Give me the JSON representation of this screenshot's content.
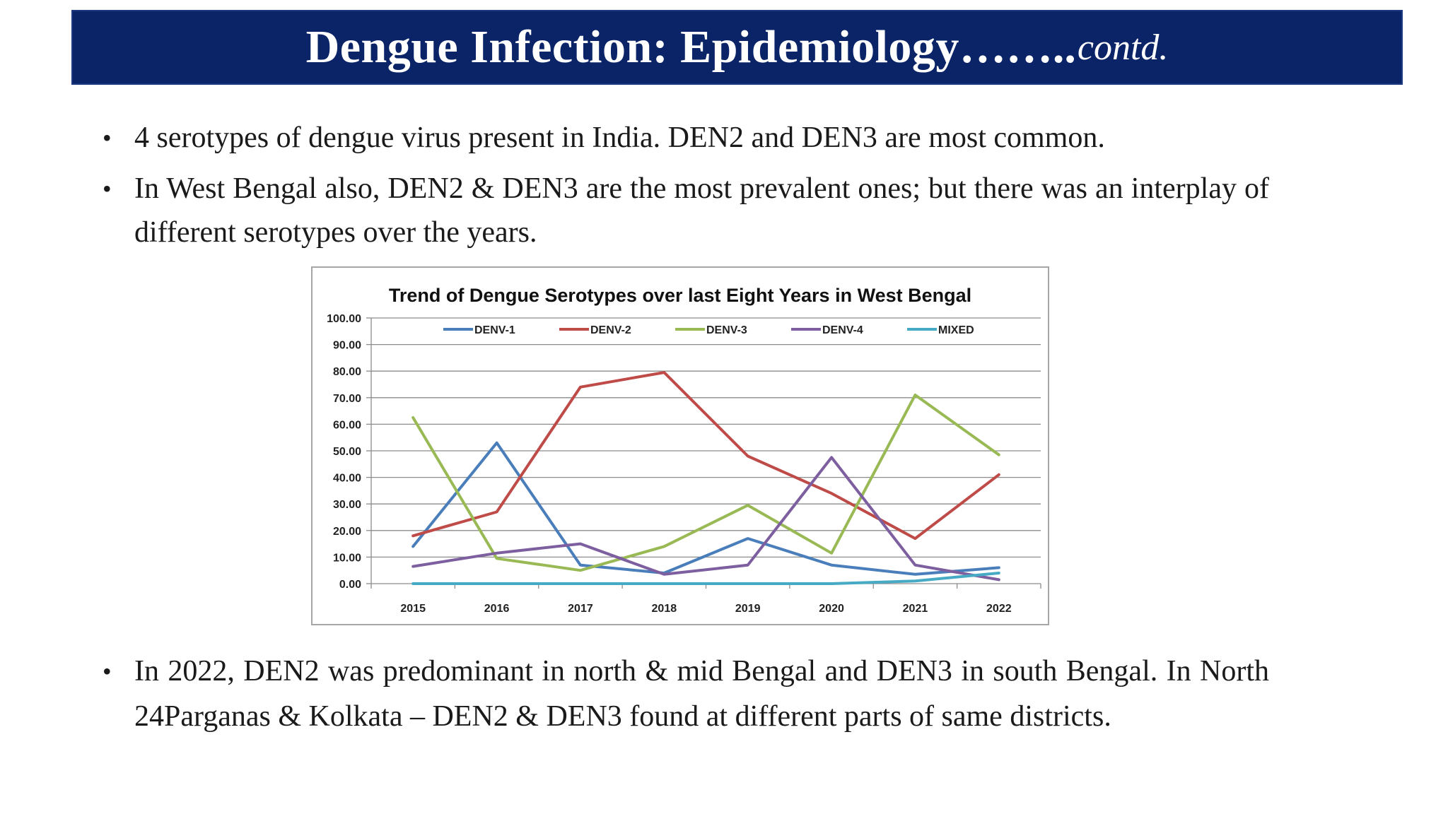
{
  "slide": {
    "title_main": "Dengue Infection: Epidemiology",
    "title_dots": "……..",
    "title_contd": "contd."
  },
  "bullets": {
    "b1": "4 serotypes of dengue virus present in India. DEN2 and DEN3 are most common.",
    "b2": "In West Bengal also, DEN2 & DEN3 are the most prevalent ones; but there was an interplay of different serotypes over the years.",
    "b3": "In 2022, DEN2 was predominant in north & mid Bengal and DEN3 in south Bengal. In North 24Parganas & Kolkata – DEN2 & DEN3 found at different parts of same districts.",
    "marker": "•"
  },
  "chart_data": {
    "type": "line",
    "title": "Trend of Dengue Serotypes over last Eight Years in West Bengal",
    "xlabel": "",
    "ylabel": "",
    "categories": [
      "2015",
      "2016",
      "2017",
      "2018",
      "2019",
      "2020",
      "2021",
      "2022"
    ],
    "ylim": [
      0,
      100
    ],
    "yticks": [
      "0.00",
      "10.00",
      "20.00",
      "30.00",
      "40.00",
      "50.00",
      "60.00",
      "70.00",
      "80.00",
      "90.00",
      "100.00"
    ],
    "grid": true,
    "legend_position": "top",
    "series": [
      {
        "name": "DENV-1",
        "color": "#4a7ebb",
        "values": [
          14,
          53,
          7,
          4,
          17,
          7,
          3.5,
          6
        ]
      },
      {
        "name": "DENV-2",
        "color": "#be4b48",
        "values": [
          18,
          27,
          74,
          79.5,
          48,
          34,
          17,
          41
        ]
      },
      {
        "name": "DENV-3",
        "color": "#98b954",
        "values": [
          62.5,
          9.5,
          5,
          14,
          29.5,
          11.5,
          71,
          48.5
        ]
      },
      {
        "name": "DENV-4",
        "color": "#7d5fa0",
        "values": [
          6.5,
          11.5,
          15,
          3.5,
          7,
          47.5,
          7,
          1.5
        ]
      },
      {
        "name": "MIXED",
        "color": "#46aac5",
        "values": [
          0,
          0,
          0,
          0,
          0,
          0,
          1,
          4
        ]
      }
    ]
  }
}
